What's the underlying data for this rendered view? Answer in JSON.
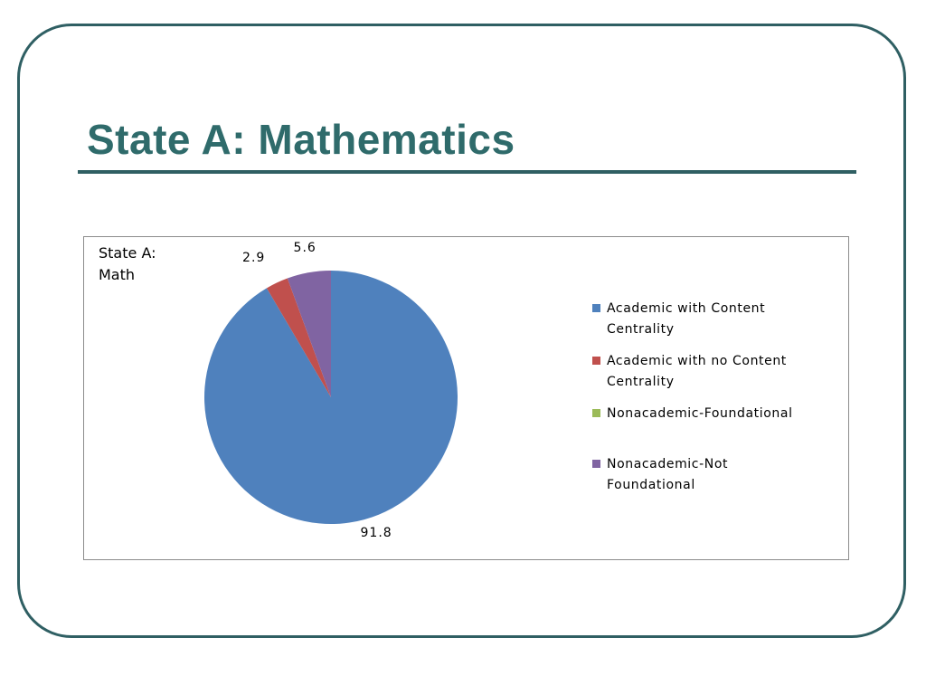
{
  "slide": {
    "title": "State A: Mathematics",
    "frame_color": "#2f5f63",
    "title_color": "#2f6b6b"
  },
  "chart_data": {
    "type": "pie",
    "title": "State A: Math",
    "categories": [
      "Academic with Content Centrality",
      "Academic with no Content Centrality",
      "Nonacademic-Foundational",
      "Nonacademic-Not Foundational"
    ],
    "values": [
      91.8,
      2.9,
      0,
      5.6
    ],
    "value_labels": [
      "91.8",
      "2.9",
      "",
      "5.6"
    ],
    "colors": [
      "#4f81bd",
      "#c0504d",
      "#9bbb59",
      "#8064a2"
    ],
    "legend_position": "right"
  }
}
